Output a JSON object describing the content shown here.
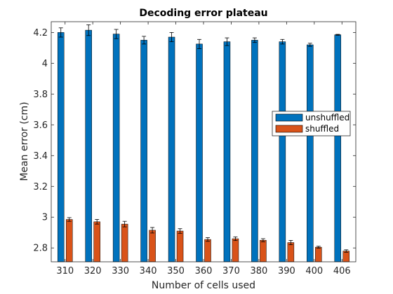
{
  "chart_data": {
    "type": "bar",
    "title": "Decoding error plateau",
    "xlabel": "Number of cells used",
    "ylabel": "Mean error (cm)",
    "categories": [
      "310",
      "320",
      "330",
      "340",
      "350",
      "360",
      "370",
      "380",
      "390",
      "400",
      "406"
    ],
    "ylim": [
      2.71,
      4.27
    ],
    "yticks": [
      "2.8",
      "3",
      "3.2",
      "3.4",
      "3.6",
      "3.8",
      "4",
      "4.2"
    ],
    "legend_position": "center-right",
    "series": [
      {
        "name": "unshuffled",
        "color": "#0072BD",
        "values": [
          4.2,
          4.215,
          4.19,
          4.15,
          4.17,
          4.125,
          4.14,
          4.15,
          4.14,
          4.12,
          4.185
        ],
        "errors": [
          0.03,
          0.035,
          0.03,
          0.025,
          0.03,
          0.03,
          0.025,
          0.015,
          0.015,
          0.01,
          0.003
        ]
      },
      {
        "name": "shuffled",
        "color": "#D95319",
        "values": [
          2.985,
          2.97,
          2.955,
          2.915,
          2.91,
          2.855,
          2.86,
          2.85,
          2.835,
          2.805,
          2.78
        ],
        "errors": [
          0.012,
          0.015,
          0.018,
          0.018,
          0.015,
          0.012,
          0.012,
          0.01,
          0.014,
          0.006,
          0.008
        ]
      }
    ]
  }
}
